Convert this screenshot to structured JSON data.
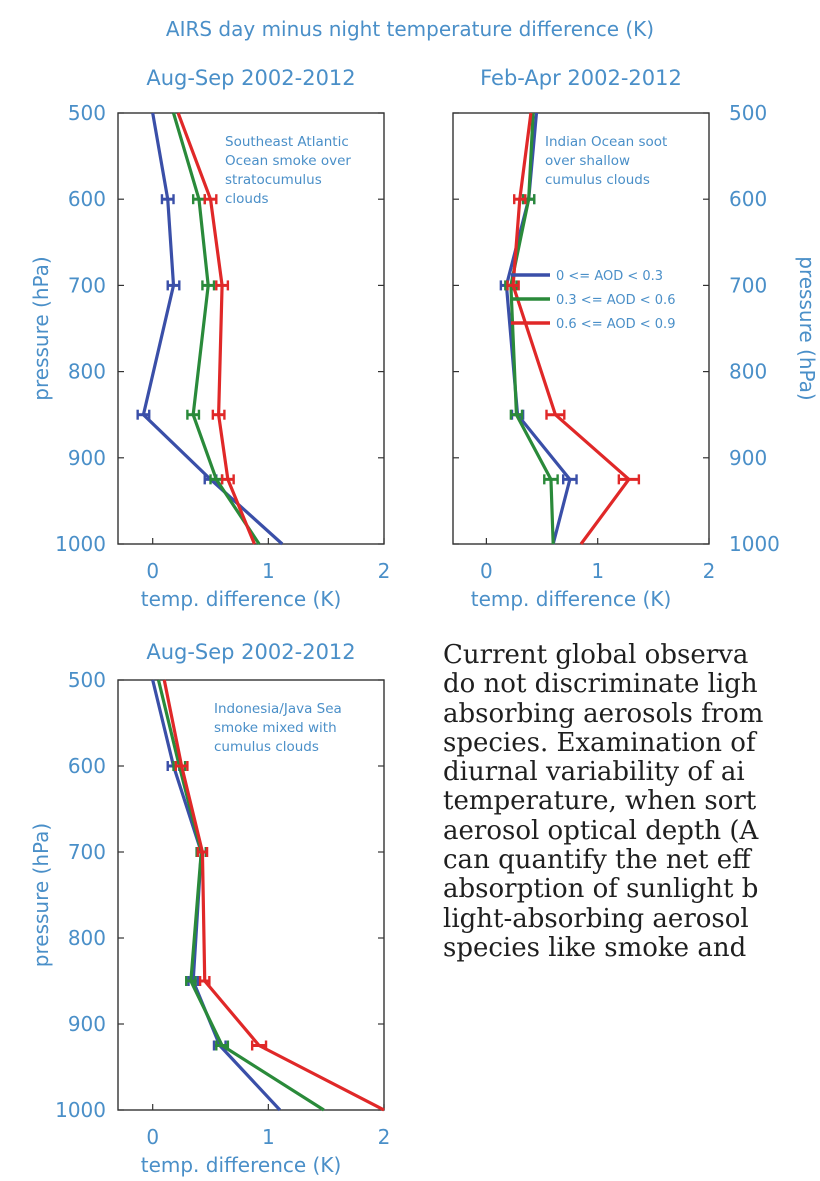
{
  "figure_title": "AIRS day minus night temperature difference (K)",
  "colors": {
    "text": "#4a8fc8",
    "low": "#3a4fa8",
    "mid": "#2a8a3a",
    "high": "#e02828",
    "axis": "#333333"
  },
  "body_text": [
    "Current global observa",
    "do not discriminate ligh",
    "absorbing aerosols from",
    "species. Examination of",
    "diurnal variability of ai",
    "temperature, when sort",
    "aerosol optical depth (A",
    "can quantify the net eff",
    "absorption of sunlight b",
    "light-absorbing aerosol",
    "species like smoke and"
  ],
  "chart_data": [
    {
      "type": "line",
      "title": "Aug-Sep 2002-2012",
      "annotation": [
        "Southeast Atlantic",
        "Ocean smoke over",
        "stratocumulus",
        "clouds"
      ],
      "xlabel": "temp. difference (K)",
      "ylabel": "pressure (hPa)",
      "ylabel_side": "left",
      "xlim": [
        -0.3,
        2
      ],
      "ylim": [
        500,
        1000
      ],
      "y_inverted": true,
      "xticks": [
        0,
        1,
        2
      ],
      "yticks": [
        500,
        600,
        700,
        800,
        900,
        1000
      ],
      "series": [
        {
          "color": "#3a4fa8",
          "x": [
            0.0,
            0.13,
            0.18,
            -0.08,
            0.5,
            1.12
          ],
          "y": [
            500,
            600,
            700,
            850,
            925,
            1000
          ],
          "xerr": [
            0,
            0.05,
            0.05,
            0.05,
            0.05,
            0
          ]
        },
        {
          "color": "#2a8a3a",
          "x": [
            0.18,
            0.4,
            0.48,
            0.35,
            0.55,
            0.92
          ],
          "y": [
            500,
            600,
            700,
            850,
            925,
            1000
          ],
          "xerr": [
            0,
            0.05,
            0.05,
            0.05,
            0.05,
            0
          ]
        },
        {
          "color": "#e02828",
          "x": [
            0.22,
            0.5,
            0.6,
            0.57,
            0.65,
            0.88
          ],
          "y": [
            500,
            600,
            700,
            850,
            925,
            1000
          ],
          "xerr": [
            0,
            0.05,
            0.05,
            0.05,
            0.05,
            0
          ]
        }
      ]
    },
    {
      "type": "line",
      "title": "Feb-Apr 2002-2012",
      "annotation": [
        "Indian Ocean soot",
        "over shallow",
        "cumulus clouds"
      ],
      "xlabel": "temp. difference (K)",
      "ylabel": "pressure (hPa)",
      "ylabel_side": "right",
      "xlim": [
        -0.3,
        2
      ],
      "ylim": [
        500,
        1000
      ],
      "y_inverted": true,
      "xticks": [
        0,
        1,
        2
      ],
      "yticks": [
        500,
        600,
        700,
        800,
        900,
        1000
      ],
      "legend": {
        "placement": "middle-right",
        "entries": [
          "0 <= AOD < 0.3",
          "0.3 <= AOD < 0.6",
          "0.6 <= AOD < 0.9"
        ]
      },
      "series": [
        {
          "name": "0 <= AOD < 0.3",
          "color": "#3a4fa8",
          "x": [
            0.45,
            0.38,
            0.18,
            0.28,
            0.75,
            0.6
          ],
          "y": [
            500,
            600,
            700,
            850,
            925,
            1000
          ],
          "xerr": [
            0,
            0.05,
            0.05,
            0.05,
            0.06,
            0
          ]
        },
        {
          "name": "0.3 <= AOD < 0.6",
          "color": "#2a8a3a",
          "x": [
            0.42,
            0.38,
            0.22,
            0.27,
            0.58,
            0.6
          ],
          "y": [
            500,
            600,
            700,
            850,
            925,
            1000
          ],
          "xerr": [
            0,
            0.05,
            0.05,
            0.05,
            0.06,
            0
          ]
        },
        {
          "name": "0.6 <= AOD < 0.9",
          "color": "#e02828",
          "x": [
            0.4,
            0.3,
            0.24,
            0.62,
            1.28,
            0.85
          ],
          "y": [
            500,
            600,
            700,
            850,
            925,
            1000
          ],
          "xerr": [
            0,
            0.05,
            0.05,
            0.08,
            0.09,
            0
          ]
        }
      ]
    },
    {
      "type": "line",
      "title": "Aug-Sep 2002-2012",
      "annotation": [
        "Indonesia/Java Sea",
        "smoke mixed with",
        "cumulus clouds"
      ],
      "xlabel": "temp. difference (K)",
      "ylabel": "pressure (hPa)",
      "ylabel_side": "left",
      "xlim": [
        -0.3,
        2
      ],
      "ylim": [
        500,
        1000
      ],
      "y_inverted": true,
      "xticks": [
        0,
        1,
        2
      ],
      "yticks": [
        500,
        600,
        700,
        800,
        900,
        1000
      ],
      "series": [
        {
          "color": "#3a4fa8",
          "x": [
            0.0,
            0.18,
            0.42,
            0.35,
            0.58,
            1.1
          ],
          "y": [
            500,
            600,
            700,
            850,
            925,
            1000
          ],
          "xerr": [
            0,
            0.05,
            0.04,
            0.04,
            0.05,
            0
          ]
        },
        {
          "color": "#2a8a3a",
          "x": [
            0.05,
            0.23,
            0.42,
            0.33,
            0.6,
            1.48
          ],
          "y": [
            500,
            600,
            700,
            850,
            925,
            1000
          ],
          "xerr": [
            0,
            0.05,
            0.04,
            0.04,
            0.05,
            0
          ]
        },
        {
          "color": "#e02828",
          "x": [
            0.1,
            0.25,
            0.43,
            0.45,
            0.92,
            2.0
          ],
          "y": [
            500,
            600,
            700,
            850,
            925,
            1000
          ],
          "xerr": [
            0,
            0.05,
            0.04,
            0.04,
            0.06,
            0
          ]
        }
      ]
    }
  ]
}
